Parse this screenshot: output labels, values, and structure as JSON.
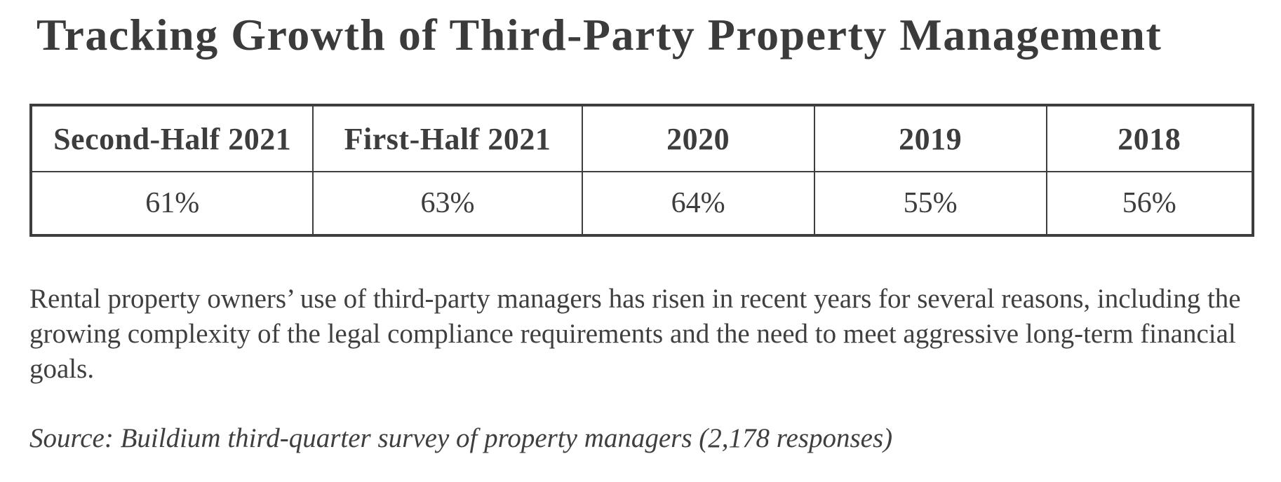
{
  "page": {
    "title": "Tracking Growth of Third-Party Property Management"
  },
  "chart_data": {
    "type": "table",
    "title": "Tracking Growth of Third-Party Property Management",
    "columns": [
      "Second-Half 2021",
      "First-Half 2021",
      "2020",
      "2019",
      "2018"
    ],
    "rows": [
      [
        "61%",
        "63%",
        "64%",
        "55%",
        "56%"
      ]
    ],
    "source": "Source: Buildium third-quarter survey of property managers (2,178 responses)"
  },
  "table": {
    "headers": [
      "Second-Half 2021",
      "First-Half 2021",
      "2020",
      "2019",
      "2018"
    ],
    "values": [
      "61%",
      "63%",
      "64%",
      "55%",
      "56%"
    ]
  },
  "text": {
    "paragraph": "Rental property owners’ use of third-party managers has risen in recent years for several reasons, including the growing complexity of the legal compliance requirements and the need to meet aggressive long-term financial goals.",
    "source": "Source: Buildium third-quarter survey of property managers (2,178 responses)"
  },
  "colors": {
    "text": "#3d3d3d",
    "border": "#3d3d3d",
    "background": "#ffffff"
  }
}
